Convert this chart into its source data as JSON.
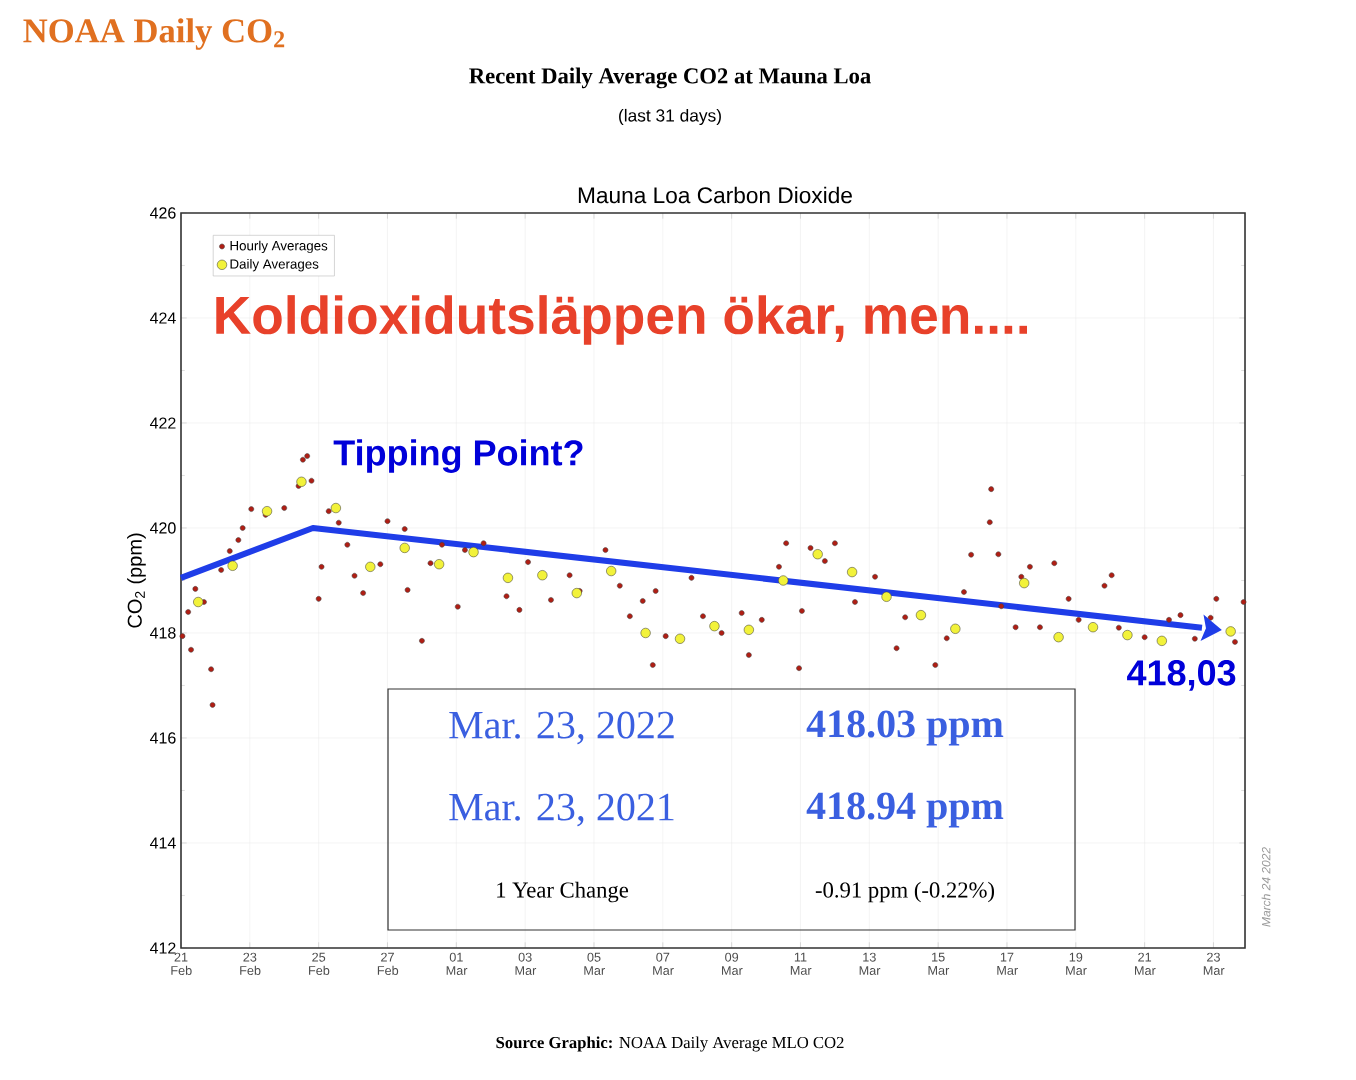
{
  "chart_data": {
    "type": "scatter",
    "title": "NOAA Daily CO$_{2}$",
    "subtitle": "Recent Daily Average CO2 at Mauna Loa",
    "ylabel": "CO$_{2}$ (ppm)",
    "xlim": [
      "2022-02-21T00:00",
      "2022-03-23T22:00"
    ],
    "ylim": [
      412,
      426
    ],
    "xticks": [
      {
        "value": "2022-02-21",
        "label": "21 Feb"
      },
      {
        "value": "2022-02-23",
        "label": "23 Feb"
      },
      {
        "value": "2022-02-25",
        "label": "25 Feb"
      },
      {
        "value": "2022-02-27",
        "label": "27 Feb"
      },
      {
        "value": "2022-03-01",
        "label": "01 Mar"
      },
      {
        "value": "2022-03-03",
        "label": "03 Mar"
      },
      {
        "value": "2022-03-05",
        "label": "05 Mar"
      },
      {
        "value": "2022-03-07",
        "label": "07 Mar"
      },
      {
        "value": "2022-03-09",
        "label": "09 Mar"
      },
      {
        "value": "2022-03-11",
        "label": "11 Mar"
      },
      {
        "value": "2022-03-13",
        "label": "13 Mar"
      },
      {
        "value": "2022-03-15",
        "label": "15 Mar"
      },
      {
        "value": "2022-03-17",
        "label": "17 Mar"
      },
      {
        "value": "2022-03-19",
        "label": "19 Mar"
      },
      {
        "value": "2022-03-21",
        "label": "21 Mar"
      },
      {
        "value": "2022-03-23",
        "label": "23 Mar"
      }
    ],
    "yticks": [
      412,
      414,
      416,
      418,
      420,
      422,
      424,
      426
    ],
    "grid": true,
    "legend": "top left",
    "series": [
      {
        "name": "Hourly Averages",
        "type": "scatter",
        "marker": "circle",
        "color": "#b01e14",
        "x": [
          "2022-02-21T01:00",
          "2022-02-21T05:00",
          "2022-02-21T07:00",
          "2022-02-21T10:00",
          "2022-02-21T16:00",
          "2022-02-21T21:00",
          "2022-02-21T22:00",
          "2022-02-22T04:00",
          "2022-02-22T10:00",
          "2022-02-22T16:00",
          "2022-02-22T19:00",
          "2022-02-23T01:00",
          "2022-02-23T11:00",
          "2022-02-24T00:00",
          "2022-02-24T10:00",
          "2022-02-24T13:00",
          "2022-02-24T16:00",
          "2022-02-24T19:00",
          "2022-02-25T00:00",
          "2022-02-25T02:00",
          "2022-02-25T07:00",
          "2022-02-25T14:00",
          "2022-02-25T20:00",
          "2022-02-26T01:00",
          "2022-02-26T07:00",
          "2022-02-26T19:00",
          "2022-02-27T00:00",
          "2022-02-27T12:00",
          "2022-02-27T14:00",
          "2022-02-28T00:00",
          "2022-02-28T06:00",
          "2022-02-28T14:00",
          "2022-03-01T01:00",
          "2022-03-01T06:00",
          "2022-03-01T19:00",
          "2022-03-02T11:00",
          "2022-03-02T20:00",
          "2022-03-03T02:00",
          "2022-03-03T18:00",
          "2022-03-04T07:00",
          "2022-03-04T14:00",
          "2022-03-05T08:00",
          "2022-03-05T18:00",
          "2022-03-06T01:00",
          "2022-03-06T10:00",
          "2022-03-06T17:00",
          "2022-03-06T19:00",
          "2022-03-07T02:00",
          "2022-03-07T20:00",
          "2022-03-08T04:00",
          "2022-03-08T17:00",
          "2022-03-09T07:00",
          "2022-03-09T12:00",
          "2022-03-09T21:00",
          "2022-03-10T09:00",
          "2022-03-10T14:00",
          "2022-03-10T23:00",
          "2022-03-11T01:00",
          "2022-03-11T07:00",
          "2022-03-11T17:00",
          "2022-03-12T00:00",
          "2022-03-12T14:00",
          "2022-03-13T04:00",
          "2022-03-13T19:00",
          "2022-03-14T01:00",
          "2022-03-14T22:00",
          "2022-03-15T06:00",
          "2022-03-15T18:00",
          "2022-03-15T23:00",
          "2022-03-16T12:00",
          "2022-03-16T13:00",
          "2022-03-16T18:00",
          "2022-03-16T20:00",
          "2022-03-17T06:00",
          "2022-03-17T10:00",
          "2022-03-17T16:00",
          "2022-03-17T23:00",
          "2022-03-18T09:00",
          "2022-03-18T19:00",
          "2022-03-19T02:00",
          "2022-03-19T20:00",
          "2022-03-20T01:00",
          "2022-03-20T06:00",
          "2022-03-21T00:00",
          "2022-03-21T17:00",
          "2022-03-22T01:00",
          "2022-03-22T11:00",
          "2022-03-22T22:00",
          "2022-03-23T02:00",
          "2022-03-23T15:00",
          "2022-03-23T21:00"
        ],
        "values": [
          417.94,
          418.4,
          417.68,
          418.84,
          418.59,
          417.31,
          416.63,
          419.2,
          419.56,
          419.77,
          420.0,
          420.36,
          420.25,
          420.38,
          420.8,
          421.3,
          421.37,
          420.9,
          418.65,
          419.26,
          420.32,
          420.1,
          419.68,
          419.09,
          418.76,
          419.31,
          420.13,
          419.98,
          418.82,
          417.85,
          419.33,
          419.68,
          418.5,
          419.58,
          419.71,
          418.7,
          418.44,
          419.35,
          418.63,
          419.1,
          418.8,
          419.58,
          418.9,
          418.32,
          418.61,
          417.39,
          418.8,
          417.94,
          419.05,
          418.32,
          418.0,
          418.38,
          417.58,
          418.25,
          419.26,
          419.71,
          417.33,
          418.42,
          419.62,
          419.37,
          419.71,
          418.59,
          419.07,
          417.71,
          418.3,
          417.39,
          417.9,
          418.78,
          419.49,
          420.11,
          420.74,
          419.5,
          418.51,
          418.11,
          419.07,
          419.26,
          418.11,
          419.33,
          418.65,
          418.25,
          418.9,
          419.1,
          418.1,
          417.92,
          418.25,
          418.34,
          417.89,
          418.29,
          418.65,
          417.83,
          418.59
        ]
      },
      {
        "name": "Daily Averages",
        "type": "scatter",
        "marker": "circle",
        "color": "#f2f23a",
        "x": [
          "2022-02-21T12:00",
          "2022-02-22T12:00",
          "2022-02-23T12:00",
          "2022-02-24T12:00",
          "2022-02-25T12:00",
          "2022-02-26T12:00",
          "2022-02-27T12:00",
          "2022-02-28T12:00",
          "2022-03-01T12:00",
          "2022-03-02T12:00",
          "2022-03-03T12:00",
          "2022-03-04T12:00",
          "2022-03-05T12:00",
          "2022-03-06T12:00",
          "2022-03-07T12:00",
          "2022-03-08T12:00",
          "2022-03-09T12:00",
          "2022-03-10T12:00",
          "2022-03-11T12:00",
          "2022-03-12T12:00",
          "2022-03-13T12:00",
          "2022-03-14T12:00",
          "2022-03-15T12:00",
          "2022-03-17T12:00",
          "2022-03-18T12:00",
          "2022-03-19T12:00",
          "2022-03-20T12:00",
          "2022-03-21T12:00",
          "2022-03-23T12:00"
        ],
        "values": [
          418.59,
          419.28,
          420.32,
          420.88,
          420.38,
          419.26,
          419.62,
          419.31,
          419.54,
          419.05,
          419.1,
          418.76,
          419.18,
          418.0,
          417.89,
          418.13,
          418.06,
          419.0,
          419.5,
          419.16,
          418.69,
          418.34,
          418.08,
          418.95,
          417.92,
          418.11,
          417.96,
          417.85,
          418.03
        ]
      },
      {
        "type": "line",
        "color": "#1f3de8",
        "marker": "none",
        "line_style": "solid",
        "x": [
          "2022-02-21T00:00",
          "2022-02-24T20:00",
          "2022-03-22T16:00"
        ],
        "values": [
          419.05,
          420.0,
          418.1
        ]
      }
    ],
    "annotations": [
      "(last 31 days)",
      "Mauna Loa Carbon Dioxide",
      "Koldioxidutsläppen ökar, men....",
      {
        "text": "Tipping Point?",
        "x": "2022-02-24T16:00",
        "y": 421.37
      },
      {
        "text": "418,03",
        "x": "2022-03-23T12:00",
        "y": 418.03
      },
      "Mar. 23, 2022",
      "418.03 ppm",
      "Mar. 23, 2021",
      "418.94 ppm",
      "1 Year Change",
      "-0.91 ppm (-0.22%)",
      "March 24 2022",
      "**Source Graphic:**  NOAA Daily Average MLO CO2"
    ]
  }
}
